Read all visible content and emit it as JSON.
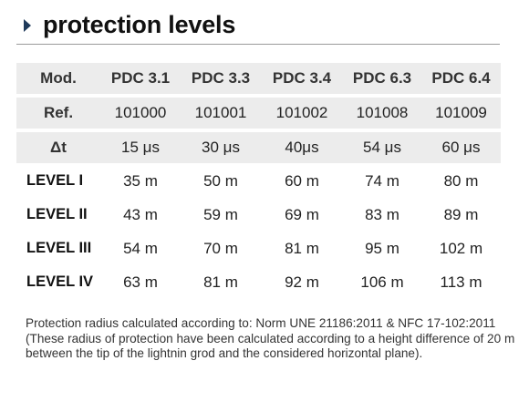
{
  "header": {
    "title": "protection levels"
  },
  "table": {
    "head": {
      "label": "Mod.",
      "cols": [
        "PDC 3.1",
        "PDC 3.3",
        "PDC 3.4",
        "PDC 6.3",
        "PDC 6.4"
      ]
    },
    "ref": {
      "label": "Ref.",
      "cols": [
        "101000",
        "101001",
        "101002",
        "101008",
        "101009"
      ]
    },
    "dt": {
      "label": "Δt",
      "cols": [
        "15 μs",
        "30 μs",
        "40μs",
        "54 μs",
        "60 μs"
      ]
    },
    "levels": [
      {
        "label": "LEVEL I",
        "cols": [
          "35 m",
          "50 m",
          "60 m",
          "74 m",
          "80 m"
        ]
      },
      {
        "label": "LEVEL II",
        "cols": [
          "43 m",
          "59 m",
          "69 m",
          "83 m",
          "89 m"
        ]
      },
      {
        "label": "LEVEL III",
        "cols": [
          "54 m",
          "70 m",
          "81 m",
          "95 m",
          "102 m"
        ]
      },
      {
        "label": "LEVEL IV",
        "cols": [
          "63 m",
          "81 m",
          "92 m",
          "106 m",
          "113 m"
        ]
      }
    ]
  },
  "footnote": {
    "text": "Protection radius calculated according to: Norm UNE 21186:2011 & NFC 17-102:2011 (These radius of protection have been calculated according to a height difference of 20 m between the tip of the lightnin grod and the considered horizontal plane)."
  }
}
